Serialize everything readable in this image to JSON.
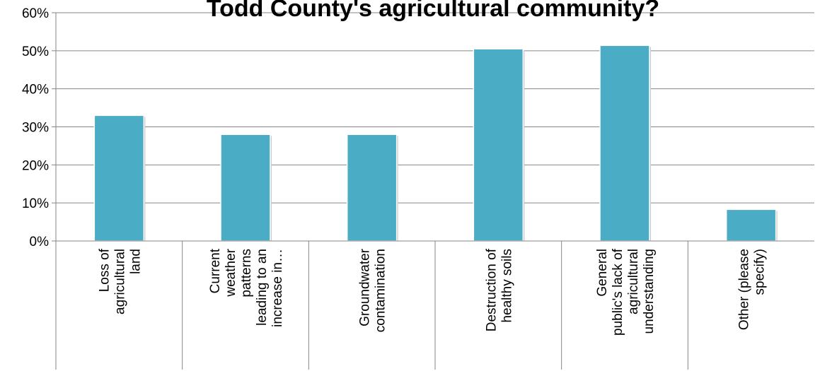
{
  "chart_data": {
    "type": "bar",
    "title": "Todd County's agricultural community?",
    "categories": [
      [
        "Loss of",
        "agricultural",
        "land"
      ],
      [
        "Current",
        "weather",
        "patterns",
        "leading to an",
        "increase in…"
      ],
      [
        "Groundwater",
        "contamination"
      ],
      [
        "Destruction of",
        "healthy soils"
      ],
      [
        "General",
        "public's lack of",
        "agricultural",
        "understanding"
      ],
      [
        "Other (please",
        "specify)"
      ]
    ],
    "values": [
      0.33,
      0.28,
      0.28,
      0.505,
      0.514,
      0.083
    ],
    "ylim": [
      0,
      0.6
    ],
    "yticks": [
      "0%",
      "10%",
      "20%",
      "30%",
      "40%",
      "50%",
      "60%"
    ],
    "grid": true,
    "bar_color": "#4BACC6",
    "grid_color": "#868686"
  }
}
